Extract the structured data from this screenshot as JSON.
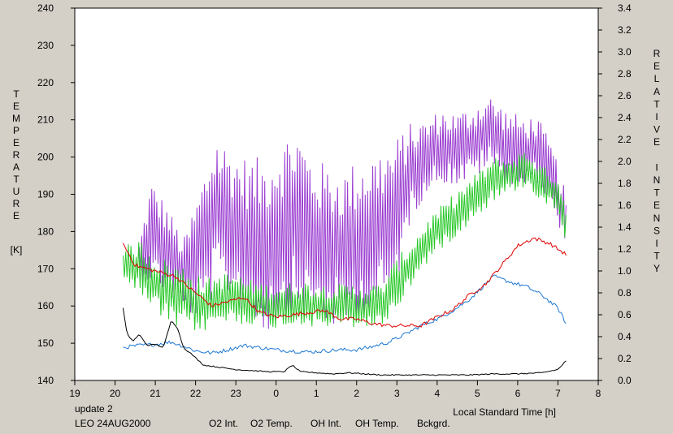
{
  "chart_data": {
    "type": "line",
    "title": "",
    "xlabel": "Local Standard Time [h]",
    "ylabel_left": "TEMPERATURE [K]",
    "ylabel_left_letters": [
      "T",
      "E",
      "M",
      "P",
      "E",
      "R",
      "A",
      "T",
      "U",
      "R",
      "E"
    ],
    "ylabel_left_unit": "[K]",
    "ylabel_right": "RELATIVE INTENSITY",
    "ylabel_right_letters": [
      "R",
      "E",
      "L",
      "A",
      "T",
      "I",
      "V",
      "E",
      "",
      "I",
      "N",
      "T",
      "E",
      "N",
      "S",
      "I",
      "T",
      "Y"
    ],
    "xlim": [
      19,
      32
    ],
    "ylim_left": [
      140,
      240
    ],
    "ylim_right": [
      0.0,
      3.4
    ],
    "x_tick_values": [
      19,
      20,
      21,
      22,
      23,
      24,
      25,
      26,
      27,
      28,
      29,
      30,
      31,
      32
    ],
    "x_tick_labels": [
      "19",
      "20",
      "21",
      "22",
      "23",
      "0",
      "1",
      "2",
      "3",
      "4",
      "5",
      "6",
      "7",
      "8"
    ],
    "y_left_ticks": [
      "140",
      "150",
      "160",
      "170",
      "180",
      "190",
      "200",
      "210",
      "220",
      "230",
      "240"
    ],
    "y_right_ticks": [
      "0.0",
      "0.2",
      "0.4",
      "0.6",
      "0.8",
      "1.0",
      "1.2",
      "1.4",
      "1.6",
      "1.8",
      "2.0",
      "2.2",
      "2.4",
      "2.6",
      "2.8",
      "3.0",
      "3.2",
      "3.4"
    ],
    "grid": false,
    "status_text": "update 2",
    "station_date": "LEO 24AUG2000",
    "colors": {
      "o2_int": "#1e78d2",
      "o2_temp": "#9a3cd0",
      "oh_int": "#e00000",
      "oh_temp": "#28c828",
      "background": "#000000",
      "status": "#28c828"
    },
    "series": [
      {
        "name": "O2 Int.",
        "axis": "right",
        "x": [
          20.2,
          20.6,
          21.0,
          21.4,
          21.8,
          22.0,
          22.4,
          22.8,
          23.2,
          23.6,
          24.0,
          24.4,
          24.8,
          25.2,
          25.6,
          26.0,
          26.4,
          26.8,
          27.2,
          27.6,
          28.0,
          28.4,
          28.8,
          29.2,
          29.4,
          29.8,
          30.2,
          30.6,
          31.0,
          31.2
        ],
        "y": [
          0.3,
          0.32,
          0.33,
          0.35,
          0.3,
          0.27,
          0.25,
          0.28,
          0.32,
          0.3,
          0.28,
          0.27,
          0.26,
          0.27,
          0.28,
          0.28,
          0.31,
          0.35,
          0.42,
          0.5,
          0.56,
          0.64,
          0.74,
          0.88,
          0.95,
          0.9,
          0.86,
          0.78,
          0.66,
          0.52
        ]
      },
      {
        "name": "O2 Temp.",
        "axis": "left",
        "x": [
          20.6,
          20.9,
          21.3,
          21.7,
          22.1,
          22.5,
          22.9,
          23.3,
          23.7,
          24.1,
          24.5,
          24.9,
          25.3,
          25.7,
          26.1,
          26.5,
          26.9,
          27.3,
          27.7,
          28.1,
          28.5,
          28.9,
          29.3,
          29.7,
          30.1,
          30.5,
          30.9,
          31.2
        ],
        "y": [
          172,
          180,
          175,
          168,
          174,
          185,
          182,
          178,
          176,
          180,
          183,
          178,
          176,
          175,
          178,
          180,
          182,
          195,
          200,
          203,
          202,
          204,
          207,
          203,
          201,
          202,
          193,
          182
        ],
        "amp": [
          5,
          14,
          12,
          10,
          18,
          22,
          20,
          22,
          24,
          25,
          26,
          22,
          22,
          22,
          22,
          22,
          22,
          14,
          10,
          10,
          10,
          10,
          10,
          10,
          10,
          9,
          9,
          8
        ]
      },
      {
        "name": "OH Int.",
        "axis": "right",
        "x": [
          20.2,
          20.5,
          21.0,
          21.5,
          22.0,
          22.4,
          22.8,
          23.2,
          23.6,
          24.0,
          24.4,
          24.8,
          25.2,
          25.6,
          26.0,
          26.4,
          26.8,
          27.2,
          27.6,
          28.0,
          28.4,
          28.8,
          29.2,
          29.6,
          30.0,
          30.4,
          30.8,
          31.2
        ],
        "y": [
          1.25,
          1.05,
          1.0,
          0.95,
          0.8,
          0.68,
          0.72,
          0.76,
          0.62,
          0.58,
          0.6,
          0.62,
          0.64,
          0.56,
          0.56,
          0.52,
          0.5,
          0.5,
          0.5,
          0.58,
          0.65,
          0.78,
          0.88,
          1.05,
          1.23,
          1.3,
          1.25,
          1.15
        ]
      },
      {
        "name": "OH Temp.",
        "axis": "left",
        "x": [
          20.2,
          20.6,
          21.0,
          21.4,
          21.8,
          22.2,
          22.6,
          23.0,
          23.4,
          23.8,
          24.2,
          24.6,
          25.0,
          25.4,
          25.8,
          26.2,
          26.6,
          27.0,
          27.4,
          27.8,
          28.2,
          28.6,
          29.0,
          29.4,
          29.8,
          30.2,
          30.6,
          31.0,
          31.2
        ],
        "y": [
          172,
          170,
          166,
          163,
          162,
          160,
          162,
          162,
          161,
          160,
          160,
          161,
          160,
          160,
          160,
          160,
          160,
          166,
          172,
          178,
          182,
          186,
          190,
          194,
          195,
          197,
          193,
          190,
          182
        ],
        "amp": [
          4,
          8,
          8,
          9,
          9,
          7,
          7,
          7,
          6,
          6,
          6,
          6,
          6,
          6,
          6,
          6,
          6,
          7,
          6,
          6,
          6,
          6,
          6,
          6,
          5,
          5,
          5,
          5,
          5
        ]
      },
      {
        "name": "Bckgrd.",
        "axis": "right",
        "x": [
          20.2,
          20.3,
          20.45,
          20.6,
          20.8,
          21.0,
          21.2,
          21.4,
          21.55,
          21.7,
          21.9,
          22.2,
          22.6,
          23.0,
          23.4,
          23.8,
          24.2,
          24.4,
          24.6,
          25.0,
          25.4,
          25.8,
          26.2,
          26.6,
          27.0,
          27.6,
          28.2,
          28.8,
          29.4,
          30.0,
          30.6,
          31.0,
          31.2
        ],
        "y": [
          0.66,
          0.42,
          0.36,
          0.42,
          0.32,
          0.33,
          0.3,
          0.55,
          0.48,
          0.3,
          0.24,
          0.14,
          0.12,
          0.1,
          0.09,
          0.08,
          0.08,
          0.14,
          0.08,
          0.07,
          0.06,
          0.07,
          0.06,
          0.05,
          0.05,
          0.05,
          0.05,
          0.05,
          0.06,
          0.06,
          0.07,
          0.1,
          0.18
        ]
      }
    ]
  }
}
